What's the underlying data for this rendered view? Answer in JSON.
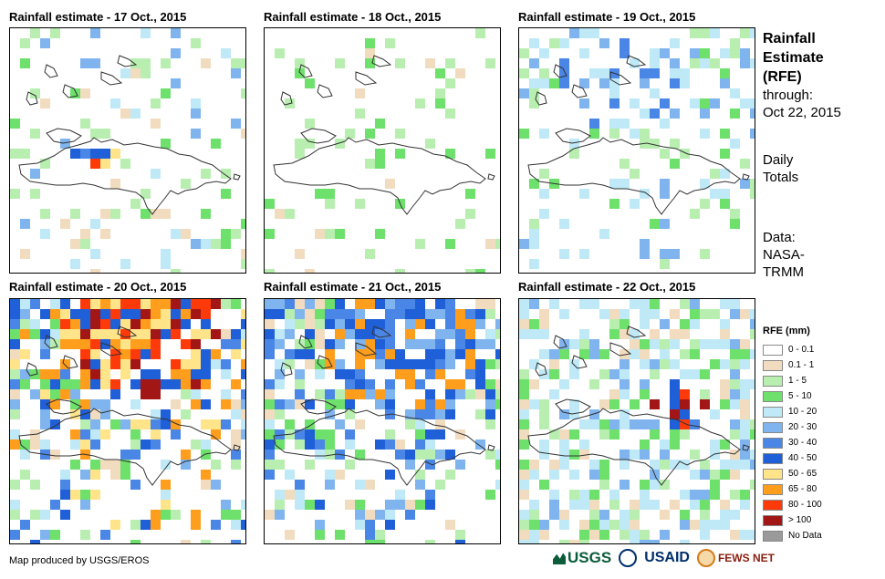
{
  "panels": [
    {
      "title": "Rainfall estimate - 17 Oct., 2015",
      "pattern": "p17"
    },
    {
      "title": "Rainfall estimate - 18 Oct., 2015",
      "pattern": "p18"
    },
    {
      "title": "Rainfall estimate - 19 Oct., 2015",
      "pattern": "p19"
    },
    {
      "title": "Rainfall estimate - 20 Oct., 2015",
      "pattern": "p20"
    },
    {
      "title": "Rainfall estimate - 21 Oct., 2015",
      "pattern": "p21"
    },
    {
      "title": "Rainfall estimate - 22 Oct., 2015",
      "pattern": "p22"
    }
  ],
  "side": {
    "title_line1": "Rainfall",
    "title_line2": "Estimate",
    "title_line3": "(RFE)",
    "through_label": "through:",
    "through_date": "Oct 22, 2015",
    "daily_line1": "Daily",
    "daily_line2": "Totals",
    "data_line1": "Data:",
    "data_line2": "NASA-",
    "data_line3": "TRMM"
  },
  "legend": {
    "title": "RFE (mm)",
    "items": [
      {
        "label": "0 - 0.1",
        "color": "#ffffff"
      },
      {
        "label": "0.1 - 1",
        "color": "#f2dcbf"
      },
      {
        "label": "1 - 5",
        "color": "#b8efb0"
      },
      {
        "label": "5 - 10",
        "color": "#6ee06c"
      },
      {
        "label": "10 - 20",
        "color": "#bfe9f7"
      },
      {
        "label": "20 - 30",
        "color": "#7fb4ee"
      },
      {
        "label": "30 - 40",
        "color": "#4a86e6"
      },
      {
        "label": "40 - 50",
        "color": "#1f5fd8"
      },
      {
        "label": "50 - 65",
        "color": "#ffe48a"
      },
      {
        "label": "65 - 80",
        "color": "#ff9d1c"
      },
      {
        "label": "80 - 100",
        "color": "#ff3a0a"
      },
      {
        "label": "> 100",
        "color": "#a31616"
      },
      {
        "label": "No Data",
        "color": "#9a9a9a"
      }
    ]
  },
  "credit": "Map produced by USGS/EROS",
  "logos": {
    "usgs": "USGS",
    "usaid": "USAID",
    "fews": "FEWS NET"
  }
}
